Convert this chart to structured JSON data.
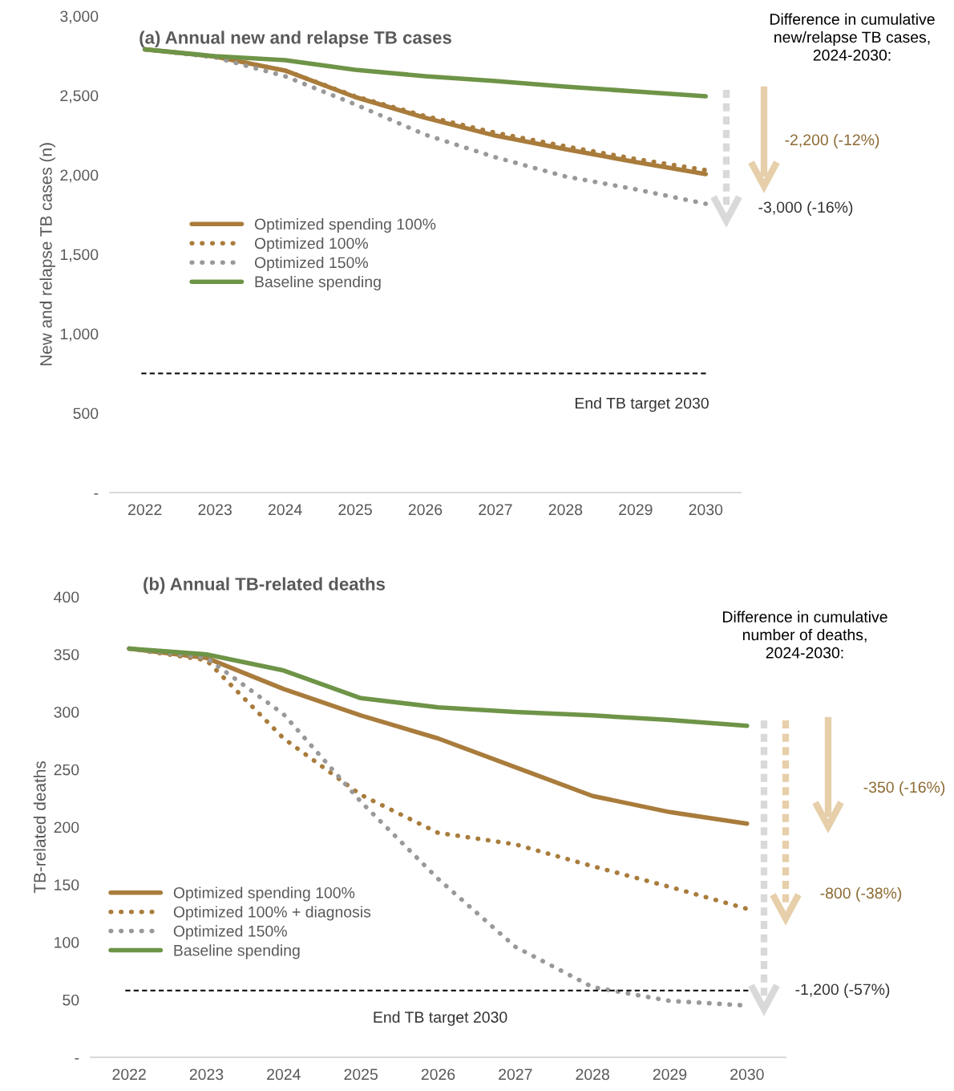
{
  "chart_data": [
    {
      "type": "line",
      "title": "(a) Annual new and relapse TB cases",
      "ylabel": "New and relapse TB cases (n)",
      "x": [
        2022,
        2023,
        2024,
        2025,
        2026,
        2027,
        2028,
        2029,
        2030
      ],
      "xlim": [
        2021.5,
        2030.5
      ],
      "xticks": [
        2022,
        2023,
        2024,
        2025,
        2026,
        2027,
        2028,
        2029,
        2030
      ],
      "ylim": [
        0,
        3000
      ],
      "yticks": [
        {
          "value": 0,
          "label": "-"
        },
        500,
        {
          "value": 1000,
          "label": "1,000"
        },
        {
          "value": 1500,
          "label": "1,500"
        },
        {
          "value": 2000,
          "label": "2,000"
        },
        {
          "value": 2500,
          "label": "2,500"
        },
        {
          "value": 3000,
          "label": "3,000"
        }
      ],
      "series": [
        {
          "name": "Optimized spending 100%",
          "color": "#a97c3c",
          "line_style": "solid",
          "values": [
            2790,
            2745,
            2657,
            2490,
            2359,
            2247,
            2162,
            2081,
            2005
          ]
        },
        {
          "name": "Optimized 100%",
          "color": "#a97c3c",
          "line_style": "dotted",
          "values": [
            2790,
            2745,
            2657,
            2495,
            2370,
            2265,
            2180,
            2100,
            2030
          ]
        },
        {
          "name": "Optimized 150%",
          "color": "#999999",
          "line_style": "dotted",
          "values": [
            2790,
            2740,
            2621,
            2444,
            2253,
            2111,
            1990,
            1909,
            1818
          ]
        },
        {
          "name": "Baseline spending",
          "color": "#6e9447",
          "line_style": "solid",
          "values": [
            2790,
            2747,
            2722,
            2662,
            2621,
            2591,
            2556,
            2525,
            2495
          ]
        }
      ],
      "ref_lines": [
        {
          "axis": "y",
          "value": 750,
          "label": "End TB target 2030",
          "color": "#000000",
          "line_style": "dashed"
        }
      ],
      "legend": "center left",
      "grid": false,
      "marker": "none",
      "annotations": [
        "Difference in cumulative\nnew/relapse TB cases,\n2024-2030:",
        "-2,200 (-12%)",
        "-3,000 (-16%)"
      ]
    },
    {
      "type": "line",
      "title": "(b) Annual TB-related deaths",
      "ylabel": "TB-related deaths",
      "x": [
        2022,
        2023,
        2024,
        2025,
        2026,
        2027,
        2028,
        2029,
        2030
      ],
      "xlim": [
        2021.5,
        2030.5
      ],
      "xticks": [
        2022,
        2023,
        2024,
        2025,
        2026,
        2027,
        2028,
        2029,
        2030
      ],
      "ylim": [
        0,
        400
      ],
      "yticks": [
        {
          "value": 0,
          "label": "-"
        },
        50,
        100,
        150,
        200,
        250,
        300,
        350,
        400
      ],
      "series": [
        {
          "name": "Optimized spending 100%",
          "color": "#a97c3c",
          "line_style": "solid",
          "values": [
            355,
            347,
            320,
            297,
            277,
            252,
            227,
            213,
            203
          ]
        },
        {
          "name": "Optimized 100% + diagnosis",
          "color": "#a97c3c",
          "line_style": "dotted",
          "values": [
            355,
            345,
            277,
            228,
            195,
            185,
            166,
            148,
            129
          ]
        },
        {
          "name": "Optimized 150%",
          "color": "#999999",
          "line_style": "dotted",
          "values": [
            355,
            347,
            298,
            222,
            155,
            96,
            61,
            49,
            45
          ]
        },
        {
          "name": "Baseline spending",
          "color": "#6e9447",
          "line_style": "solid",
          "values": [
            355,
            350,
            336,
            312,
            304,
            300,
            297,
            293,
            288
          ]
        }
      ],
      "ref_lines": [
        {
          "axis": "y",
          "value": 58,
          "label": "End TB target 2030",
          "color": "#000000",
          "line_style": "dashed"
        }
      ],
      "legend": "lower left",
      "grid": false,
      "marker": "none",
      "annotations": [
        "Difference in cumulative\nnumber of deaths,\n2024-2030:",
        "-350 (-16%)",
        "-800 (-38%)",
        "-1,200 (-57%)"
      ]
    }
  ]
}
